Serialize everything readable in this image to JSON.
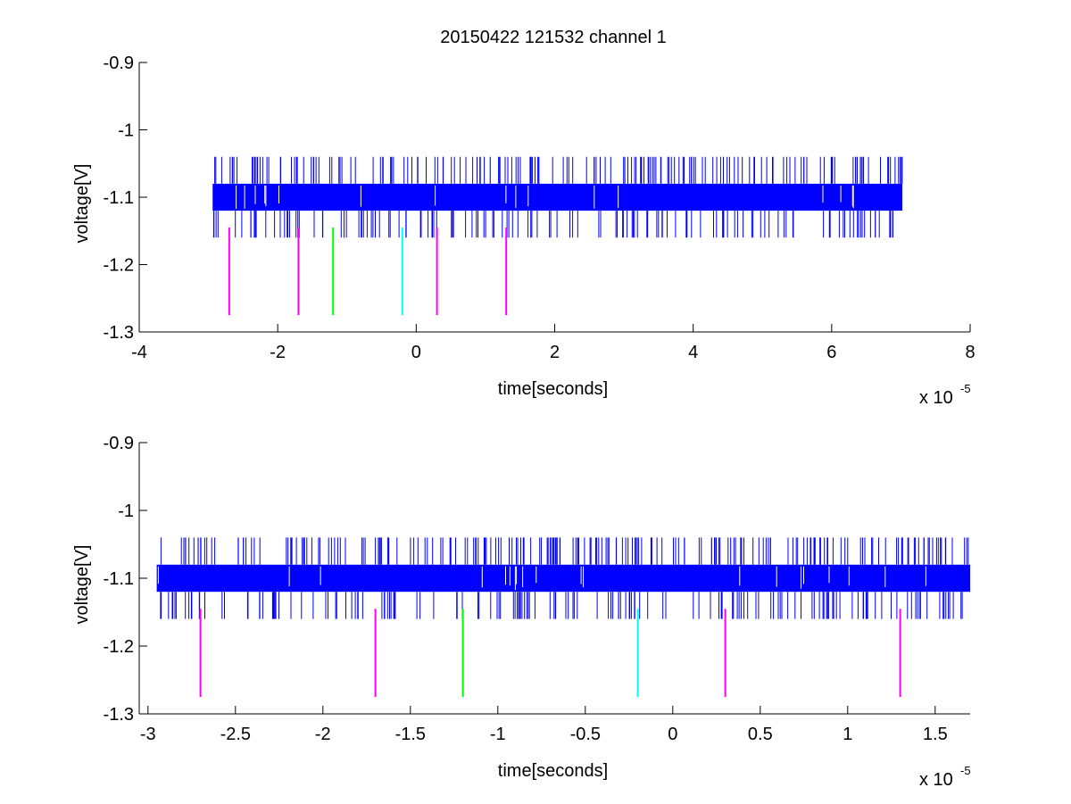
{
  "figure": {
    "title": "20150422 121532 channel 1"
  },
  "chart_data": [
    {
      "type": "line",
      "xlabel": "time[seconds]",
      "ylabel": "voltage[V]",
      "x_exponent_label": "x 10",
      "x_exponent": "-5",
      "xlim": [
        -4,
        8
      ],
      "ylim": [
        -1.3,
        -0.9
      ],
      "xticks": [
        -4,
        -2,
        0,
        2,
        4,
        6,
        8
      ],
      "xtick_labels": [
        "-4",
        "-2",
        "0",
        "2",
        "4",
        "6",
        "8"
      ],
      "yticks": [
        -1.3,
        -1.2,
        -1.1,
        -1.0,
        -0.9
      ],
      "ytick_labels": [
        "-1.3",
        "-1.2",
        "-1.1",
        "-1",
        "-0.9"
      ],
      "grid": false,
      "series": [
        {
          "color": "#0000ff",
          "x_range": [
            -2.94,
            7.02
          ],
          "band": [
            -1.12,
            -1.08
          ],
          "spike_high": -1.04,
          "spike_low": -1.16
        }
      ],
      "markers": [
        {
          "x": -2.7,
          "color": "#ff00ff",
          "y_range": [
            -1.275,
            -1.145
          ]
        },
        {
          "x": -1.7,
          "color": "#ff00ff",
          "y_range": [
            -1.275,
            -1.145
          ]
        },
        {
          "x": -1.2,
          "color": "#00ff00",
          "y_range": [
            -1.275,
            -1.145
          ]
        },
        {
          "x": -0.2,
          "color": "#00ffff",
          "y_range": [
            -1.275,
            -1.145
          ]
        },
        {
          "x": 0.3,
          "color": "#ff00ff",
          "y_range": [
            -1.275,
            -1.145
          ]
        },
        {
          "x": 1.3,
          "color": "#ff00ff",
          "y_range": [
            -1.275,
            -1.145
          ]
        }
      ]
    },
    {
      "type": "line",
      "xlabel": "time[seconds]",
      "ylabel": "voltage[V]",
      "x_exponent_label": "x 10",
      "x_exponent": "-5",
      "xlim": [
        -3.05,
        1.7
      ],
      "ylim": [
        -1.3,
        -0.9
      ],
      "xticks": [
        -3,
        -2.5,
        -2,
        -1.5,
        -1,
        -0.5,
        0,
        0.5,
        1,
        1.5
      ],
      "xtick_labels": [
        "-3",
        "-2.5",
        "-2",
        "-1.5",
        "-1",
        "-0.5",
        "0",
        "0.5",
        "1",
        "1.5"
      ],
      "yticks": [
        -1.3,
        -1.2,
        -1.1,
        -1.0,
        -0.9
      ],
      "ytick_labels": [
        "-1.3",
        "-1.2",
        "-1.1",
        "-1",
        "-0.9"
      ],
      "grid": false,
      "series": [
        {
          "color": "#0000ff",
          "x_range": [
            -2.95,
            1.7
          ],
          "band": [
            -1.12,
            -1.08
          ],
          "spike_high": -1.04,
          "spike_low": -1.16
        }
      ],
      "markers": [
        {
          "x": -2.7,
          "color": "#ff00ff",
          "y_range": [
            -1.275,
            -1.145
          ]
        },
        {
          "x": -1.7,
          "color": "#ff00ff",
          "y_range": [
            -1.275,
            -1.145
          ]
        },
        {
          "x": -1.2,
          "color": "#00ff00",
          "y_range": [
            -1.275,
            -1.145
          ]
        },
        {
          "x": -0.2,
          "color": "#00ffff",
          "y_range": [
            -1.275,
            -1.145
          ]
        },
        {
          "x": 0.3,
          "color": "#ff00ff",
          "y_range": [
            -1.275,
            -1.145
          ]
        },
        {
          "x": 1.3,
          "color": "#ff00ff",
          "y_range": [
            -1.275,
            -1.145
          ]
        }
      ]
    }
  ]
}
